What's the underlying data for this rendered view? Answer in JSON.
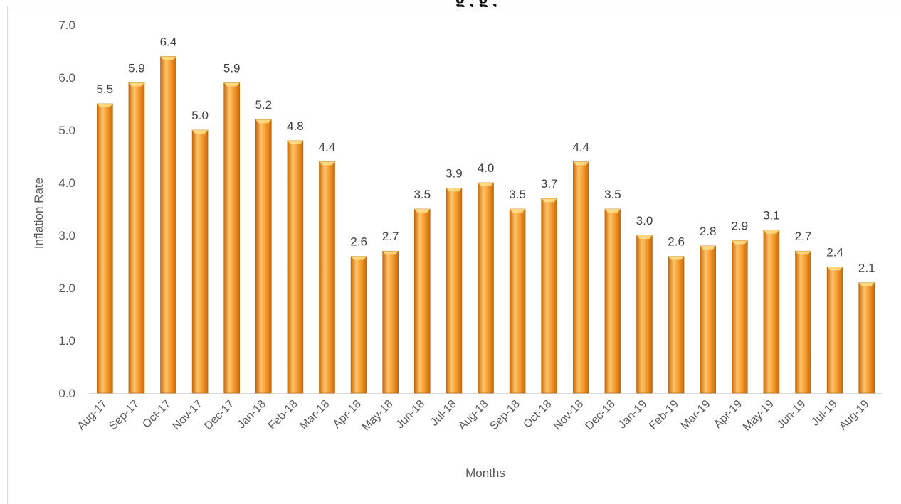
{
  "header": {
    "title_fragment": "g , g ,"
  },
  "chart_data": {
    "type": "bar",
    "title": "",
    "xlabel": "Months",
    "ylabel": "Inflation Rate",
    "ylim": [
      0,
      7
    ],
    "yticks": [
      "0.0",
      "1.0",
      "2.0",
      "3.0",
      "4.0",
      "5.0",
      "6.0",
      "7.0"
    ],
    "grid": false,
    "legend": "none",
    "bar_color": "#F39A2E",
    "bar_color_light": "#FFC46A",
    "bar_color_dark": "#C86A0A",
    "categories": [
      "Aug-17",
      "Sep-17",
      "Oct-17",
      "Nov-17",
      "Dec-17",
      "Jan-18",
      "Feb-18",
      "Mar-18",
      "Apr-18",
      "May-18",
      "Jun-18",
      "Jul-18",
      "Aug-18",
      "Sep-18",
      "Oct-18",
      "Nov-18",
      "Dec-18",
      "Jan-19",
      "Feb-19",
      "Mar-19",
      "Apr-19",
      "May-19",
      "Jun-19",
      "Jul-19",
      "Aug-19"
    ],
    "values": [
      5.5,
      5.9,
      6.4,
      5.0,
      5.9,
      5.2,
      4.8,
      4.4,
      2.6,
      2.7,
      3.5,
      3.9,
      4.0,
      3.5,
      3.7,
      4.4,
      3.5,
      3.0,
      2.6,
      2.8,
      2.9,
      3.1,
      2.7,
      2.4,
      2.1
    ],
    "data_labels": [
      "5.5",
      "5.9",
      "6.4",
      "5.0",
      "5.9",
      "5.2",
      "4.8",
      "4.4",
      "2.6",
      "2.7",
      "3.5",
      "3.9",
      "4.0",
      "3.5",
      "3.7",
      "4.4",
      "3.5",
      "3.0",
      "2.6",
      "2.8",
      "2.9",
      "3.1",
      "2.7",
      "2.4",
      "2.1"
    ]
  }
}
